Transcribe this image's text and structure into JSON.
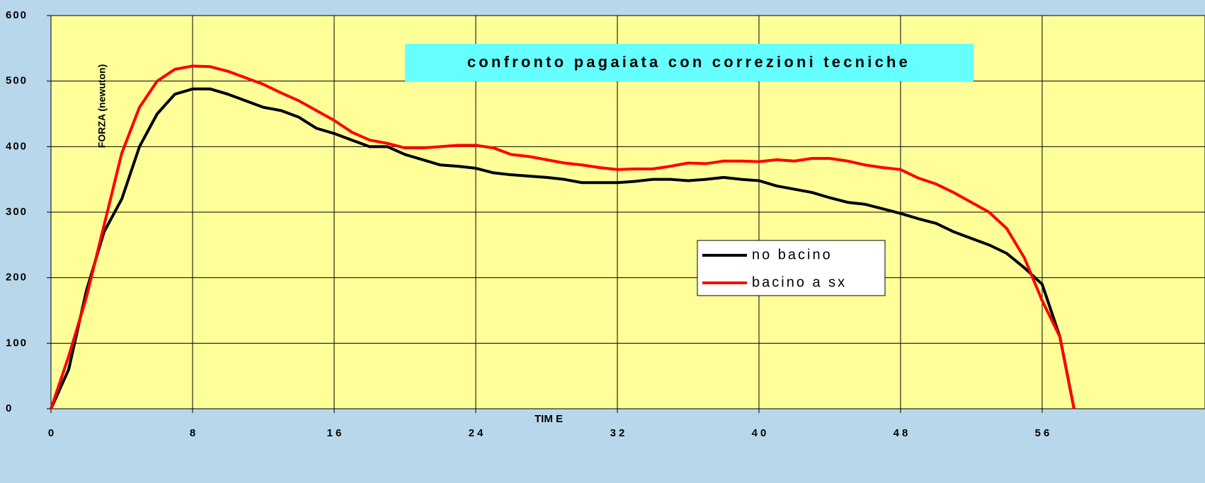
{
  "chart_data": {
    "type": "line",
    "title": "confronto pagaiata con correzioni tecniche",
    "x_label": "TIM E",
    "y_label": "FORZA (newuton)",
    "x": [
      0,
      1,
      2,
      3,
      4,
      5,
      6,
      7,
      8,
      9,
      10,
      11,
      12,
      13,
      14,
      15,
      16,
      17,
      18,
      19,
      20,
      21,
      22,
      23,
      24,
      25,
      26,
      27,
      28,
      29,
      30,
      31,
      32,
      33,
      34,
      35,
      36,
      37,
      38,
      39,
      40,
      41,
      42,
      43,
      44,
      45,
      46,
      47,
      48,
      49,
      50,
      51,
      52,
      53,
      54,
      55,
      56,
      57,
      57.8
    ],
    "series": [
      {
        "name": "no bacino",
        "color": "#000000",
        "values": [
          0,
          60,
          180,
          270,
          320,
          400,
          450,
          480,
          488,
          488,
          480,
          470,
          460,
          455,
          445,
          428,
          420,
          410,
          400,
          400,
          388,
          380,
          372,
          370,
          367,
          360,
          357,
          355,
          353,
          350,
          345,
          345,
          345,
          347,
          350,
          350,
          348,
          350,
          353,
          350,
          348,
          340,
          335,
          330,
          322,
          315,
          312,
          305,
          298,
          290,
          283,
          270,
          260,
          250,
          237,
          215,
          190,
          110,
          0
        ]
      },
      {
        "name": "bacino a sx",
        "color": "#ff0000",
        "values": [
          0,
          80,
          170,
          280,
          390,
          460,
          500,
          518,
          523,
          522,
          515,
          505,
          495,
          482,
          470,
          455,
          440,
          422,
          410,
          405,
          398,
          398,
          400,
          402,
          402,
          398,
          388,
          385,
          380,
          375,
          372,
          368,
          365,
          366,
          366,
          370,
          375,
          374,
          378,
          378,
          377,
          380,
          378,
          382,
          382,
          378,
          372,
          368,
          365,
          352,
          343,
          330,
          315,
          300,
          275,
          230,
          165,
          110,
          0
        ]
      }
    ],
    "xlim": [
      0,
      65.2
    ],
    "xticks": [
      0,
      8,
      16,
      24,
      32,
      40,
      48,
      56
    ],
    "ylim": [
      0,
      600
    ],
    "yticks": [
      0,
      100,
      200,
      300,
      400,
      500,
      600
    ],
    "grid": true
  }
}
